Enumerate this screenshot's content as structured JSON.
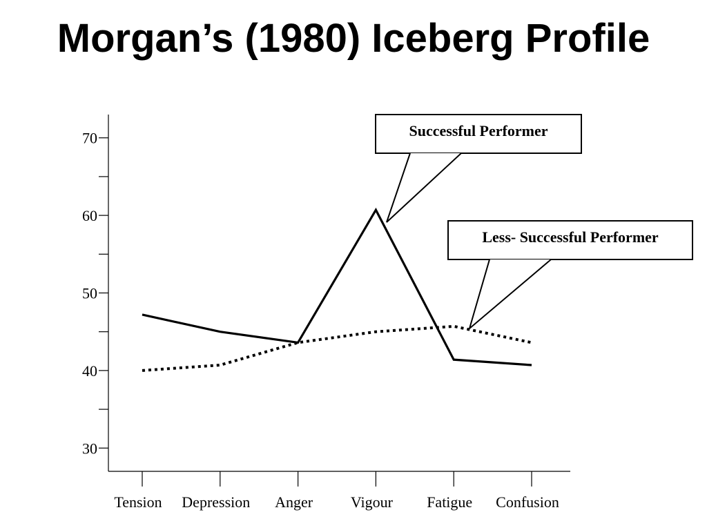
{
  "chart_data": {
    "type": "line",
    "title": "Morgan’s (1980) Iceberg Profile",
    "categories": [
      "Tension",
      "Depression",
      "Anger",
      "Vigour",
      "Fatigue",
      "Confusion"
    ],
    "ylim": [
      27,
      73
    ],
    "yticks": [
      30,
      40,
      50,
      60,
      70
    ],
    "grid": false,
    "series": [
      {
        "name": "Successful Performer",
        "style": "solid",
        "color": "#000000",
        "values": [
          47.2,
          45.0,
          43.6,
          60.7,
          41.4,
          40.7
        ]
      },
      {
        "name": "Less- Successful Performer",
        "style": "dotted",
        "color": "#000000",
        "values": [
          40.0,
          40.7,
          43.6,
          45.0,
          45.7,
          43.6
        ]
      }
    ]
  }
}
